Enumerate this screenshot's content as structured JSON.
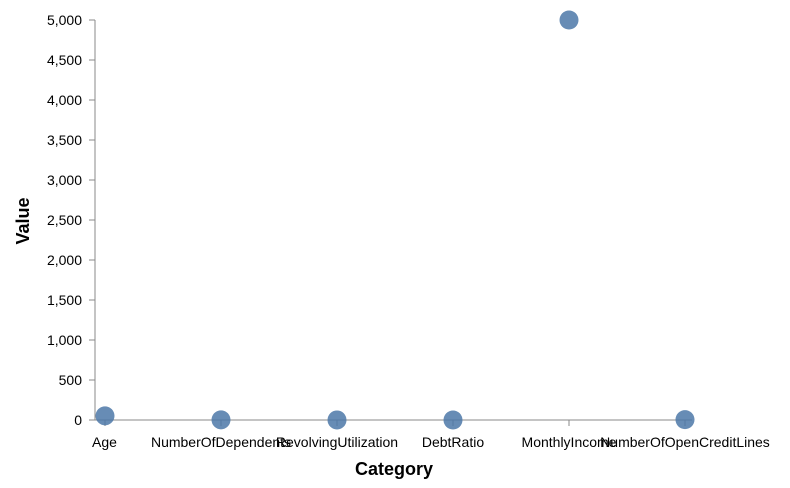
{
  "chart_data": {
    "type": "scatter",
    "title": "",
    "xlabel": "Category",
    "ylabel": "Value",
    "categories": [
      "Age",
      "NumberOfDependents",
      "RevolvingUtilization",
      "DebtRatio",
      "MonthlyIncome",
      "NumberOfOpenCreditLines"
    ],
    "values": [
      52,
      2,
      0.5,
      0.3,
      5000,
      5
    ],
    "ylim": [
      0,
      5000
    ],
    "yticks": [
      0,
      500,
      1000,
      1500,
      2000,
      2500,
      3000,
      3500,
      4000,
      4500,
      5000
    ],
    "ytick_labels": [
      "0",
      "500",
      "1,000",
      "1,500",
      "2,000",
      "2,500",
      "3,000",
      "3,500",
      "4,000",
      "4,500",
      "5,000"
    ],
    "point_color": "#4c78a8",
    "grid": false
  }
}
